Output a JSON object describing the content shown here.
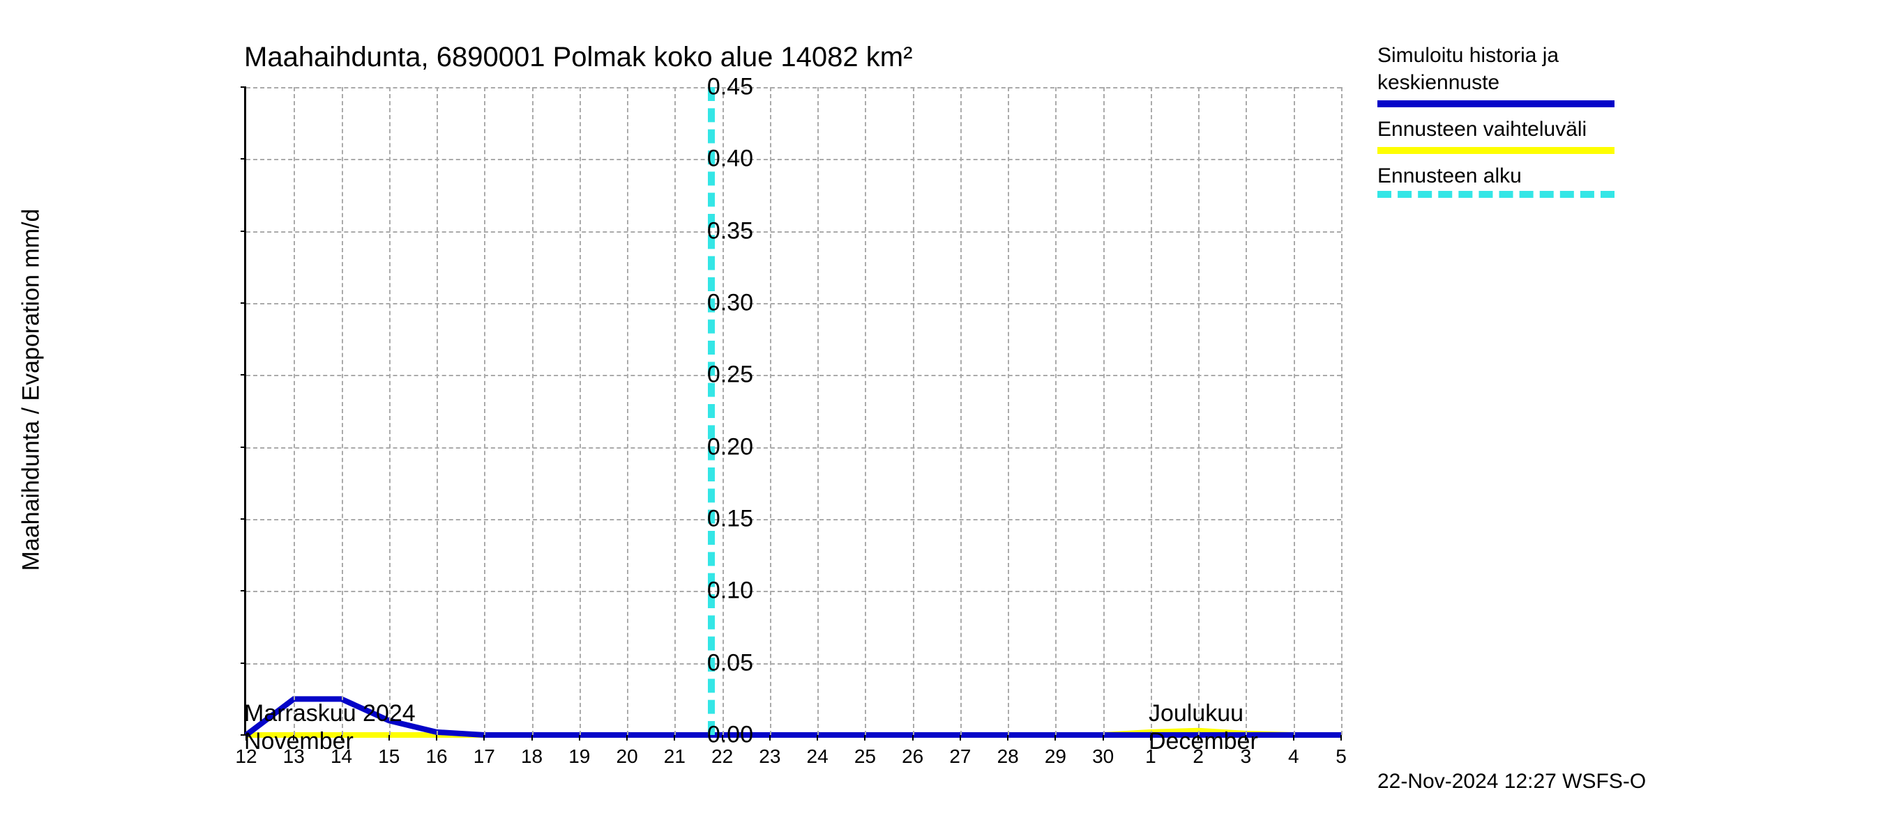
{
  "chart": {
    "type": "line",
    "title": "Maahaihdunta, 6890001 Polmak koko alue 14082 km²",
    "y_axis": {
      "label": "Maahaihdunta / Evaporation   mm/d",
      "min": 0.0,
      "max": 0.45,
      "ticks": [
        0.0,
        0.05,
        0.1,
        0.15,
        0.2,
        0.25,
        0.3,
        0.35,
        0.4,
        0.45
      ],
      "tick_labels": [
        "0.00",
        "0.05",
        "0.10",
        "0.15",
        "0.20",
        "0.25",
        "0.30",
        "0.35",
        "0.40",
        "0.45"
      ],
      "label_fontsize": 34,
      "tick_fontsize": 34
    },
    "x_axis": {
      "days": [
        12,
        13,
        14,
        15,
        16,
        17,
        18,
        19,
        20,
        21,
        22,
        23,
        24,
        25,
        26,
        27,
        28,
        29,
        30,
        1,
        2,
        3,
        4,
        5
      ],
      "day_labels": [
        "12",
        "13",
        "14",
        "15",
        "16",
        "17",
        "18",
        "19",
        "20",
        "21",
        "22",
        "23",
        "24",
        "25",
        "26",
        "27",
        "28",
        "29",
        "30",
        "1",
        "2",
        "3",
        "4",
        "5"
      ],
      "month_labels": [
        {
          "text_top": "Marraskuu 2024",
          "text_bottom": "November",
          "at_index": 0
        },
        {
          "text_top": "Joulukuu",
          "text_bottom": "December",
          "at_index": 19
        }
      ],
      "tick_fontsize": 28
    },
    "grid": {
      "color": "#9a9a9a",
      "style": "dashed"
    },
    "series": {
      "history_forecast": {
        "label_line1": "Simuloitu historia ja",
        "label_line2": "keskiennuste",
        "color": "#0404c8",
        "line_width": 8,
        "values": [
          0.0,
          0.025,
          0.025,
          0.01,
          0.002,
          0.0,
          0.0,
          0.0,
          0.0,
          0.0,
          0.0,
          0.0,
          0.0,
          0.0,
          0.0,
          0.0,
          0.0,
          0.0,
          0.0,
          0.0,
          0.0,
          0.0,
          0.0,
          0.0
        ]
      },
      "range": {
        "label": "Ennusteen vaihteluväli",
        "color": "#fefe00",
        "line_width": 8,
        "upper": [
          0,
          0,
          0,
          0,
          0,
          0,
          0,
          0,
          0,
          0,
          0,
          0,
          0,
          0,
          0,
          0,
          0,
          0,
          0,
          0.002,
          0.003,
          0.001,
          0,
          0
        ],
        "lower": [
          0,
          0,
          0,
          0,
          0,
          0,
          0,
          0,
          0,
          0,
          0,
          0,
          0,
          0,
          0,
          0,
          0,
          0,
          0,
          0,
          0,
          0,
          0,
          0
        ]
      },
      "forecast_start": {
        "label": "Ennusteen alku",
        "color": "#34e6e6",
        "style": "dashed",
        "line_width": 10,
        "at_day_fraction": 9.7
      }
    },
    "background_color": "#ffffff",
    "plot_border_color": "#000000",
    "timestamp": "22-Nov-2024 12:27 WSFS-O",
    "timestamp_fontsize": 30
  }
}
